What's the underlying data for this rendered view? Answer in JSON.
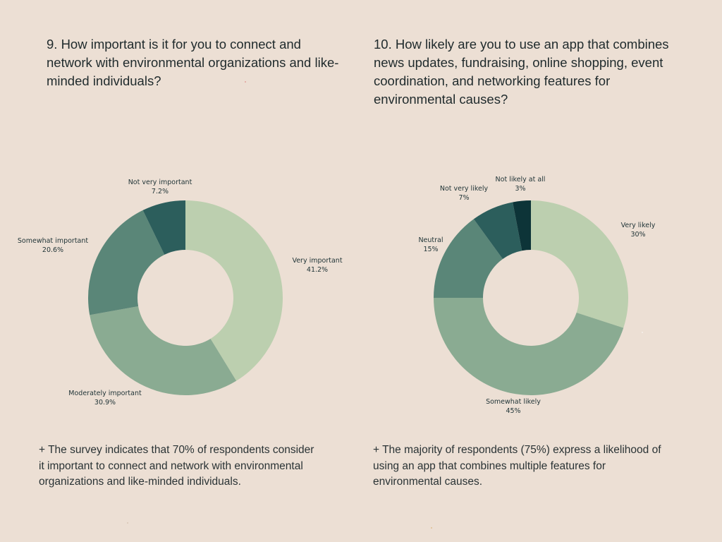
{
  "left": {
    "question": "9. How important is it for you to connect and network with environmental organizations and like-minded individuals?",
    "summary": "+ The survey indicates that 70% of respondents consider it important to connect and network with environmental organizations and like-minded individuals."
  },
  "right": {
    "question": "10. How likely are you to use an app that combines news updates, fundraising, online shopping, event coordination, and networking features for environmental causes?",
    "summary": "+ The majority of respondents (75%) express a likelihood of using an app that combines multiple features for environmental causes."
  },
  "chart_data": [
    {
      "type": "pie",
      "title": "",
      "categories": [
        "Very important",
        "Moderately important",
        "Somewhat important",
        "Not very important"
      ],
      "values": [
        41.2,
        30.9,
        20.6,
        7.2
      ],
      "value_labels": [
        "41.2%",
        "30.9%",
        "20.6%",
        "7.2%"
      ],
      "colors": [
        "#bccfaf",
        "#8aab92",
        "#5a8678",
        "#2c5e5c"
      ],
      "donut": true,
      "start": "12 o'clock",
      "direction": "clockwise"
    },
    {
      "type": "pie",
      "title": "",
      "categories": [
        "Very likely",
        "Somewhat likely",
        "Neutral",
        "Not very likely",
        "Not likely at all"
      ],
      "values": [
        30,
        45,
        15,
        7,
        3
      ],
      "value_labels": [
        "30%",
        "45%",
        "15%",
        "7%",
        "3%"
      ],
      "colors": [
        "#bccfaf",
        "#8aab92",
        "#5a8678",
        "#2c5e5c",
        "#0d3438"
      ],
      "donut": true,
      "start": "12 o'clock",
      "direction": "clockwise"
    }
  ]
}
